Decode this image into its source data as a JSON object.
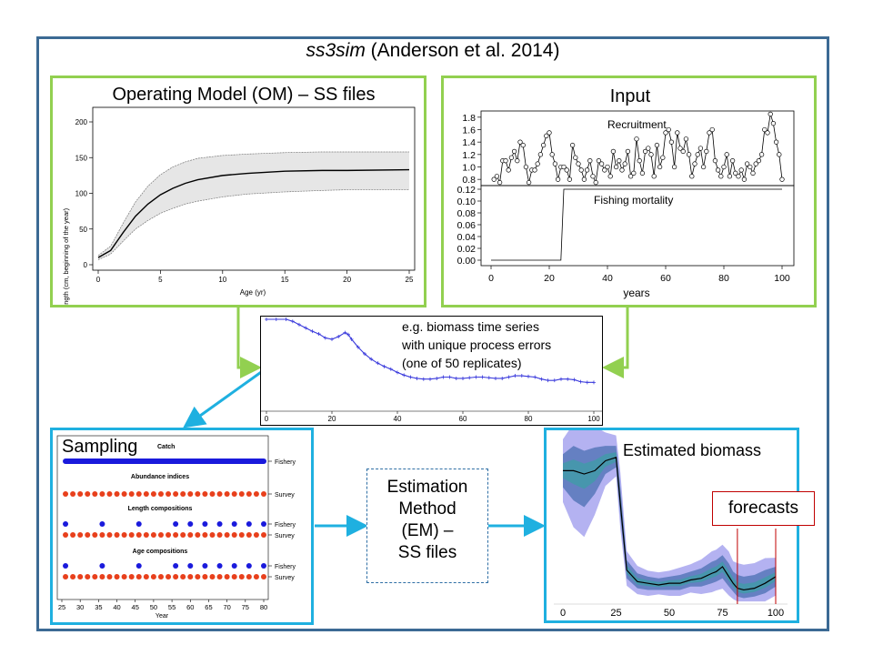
{
  "title": {
    "italic": "ss3sim",
    "rest": " (Anderson et al. 2014)"
  },
  "om": {
    "title": "Operating Model (OM) – SS files",
    "ylabel": "Length (cm, beginning of the year)",
    "xlabel": "Age (yr)",
    "xticks": [
      "0",
      "5",
      "10",
      "15",
      "20",
      "25"
    ],
    "yticks": [
      "0",
      "50",
      "100",
      "150",
      "200"
    ]
  },
  "input": {
    "title": "Input",
    "recruitment_label": "Recruitment",
    "fishing_label": "Fishing mortality",
    "xlabel": "years",
    "rec_ticks": [
      "1.8",
      "1.6",
      "1.4",
      "1.2",
      "1.0",
      "0.8"
    ],
    "f_ticks": [
      "0.12",
      "0.10",
      "0.08",
      "0.06",
      "0.04",
      "0.02",
      "0.00"
    ],
    "xticks": [
      "0",
      "20",
      "40",
      "60",
      "80",
      "100"
    ]
  },
  "biomass_series": {
    "caption_lines": [
      "e.g. biomass time series",
      "with unique process errors",
      "(one of 50 replicates)"
    ],
    "xticks": [
      "0",
      "20",
      "40",
      "60",
      "80",
      "100"
    ]
  },
  "sampling": {
    "title": "Sampling",
    "catch_label": "Catch",
    "abundance_label": "Abundance indices",
    "length_label": "Length compositions",
    "age_label": "Age compositions",
    "fishery": "Fishery",
    "survey": "Survey",
    "xlabel": "Year",
    "xticks": [
      "25",
      "30",
      "35",
      "40",
      "45",
      "50",
      "55",
      "60",
      "65",
      "70",
      "75",
      "80"
    ],
    "colors": {
      "fishery": "#1a1adc",
      "survey": "#e8401c"
    }
  },
  "em": {
    "lines": [
      "Estimation",
      "Method",
      "(EM) –",
      "SS files"
    ]
  },
  "estimated": {
    "title": "Estimated biomass",
    "forecasts": "forecasts",
    "xticks": [
      "0",
      "25",
      "50",
      "75",
      "100"
    ]
  },
  "colors": {
    "outer": "#3c6a94",
    "green": "#92d050",
    "blue": "#1fb0e0",
    "forecast": "#c00000"
  },
  "chart_data": [
    {
      "type": "line",
      "x": [
        0,
        1,
        2,
        3,
        4,
        5,
        6,
        7,
        8,
        10,
        12,
        15,
        18,
        20,
        25
      ],
      "series": [
        {
          "values": [
            10,
            20,
            45,
            68,
            85,
            98,
            107,
            114,
            119,
            125,
            128,
            131,
            132,
            132,
            133
          ]
        },
        {
          "values": [
            13,
            26,
            58,
            88,
            110,
            126,
            137,
            144,
            149,
            153,
            155,
            157,
            158,
            158,
            158
          ]
        },
        {
          "values": [
            7,
            15,
            33,
            50,
            62,
            72,
            79,
            85,
            89,
            95,
            99,
            102,
            104,
            105,
            105
          ]
        }
      ],
      "xlim": [
        0,
        25
      ],
      "ylim": [
        0,
        200
      ]
    },
    {
      "type": "line",
      "x": [
        1,
        2,
        3,
        4,
        5,
        6,
        7,
        8,
        9,
        10,
        11,
        12,
        13,
        14,
        15,
        16,
        17,
        18,
        19,
        20,
        21,
        22,
        23,
        24,
        25,
        26,
        27,
        28,
        29,
        30,
        31,
        32,
        33,
        34,
        35,
        36,
        37,
        38,
        39,
        40,
        41,
        42,
        43,
        44,
        45,
        46,
        47,
        48,
        49,
        50,
        51,
        52,
        53,
        54,
        55,
        56,
        57,
        58,
        59,
        60,
        61,
        62,
        63,
        64,
        65,
        66,
        67,
        68,
        69,
        70,
        71,
        72,
        73,
        74,
        75,
        76,
        77,
        78,
        79,
        80,
        81,
        82,
        83,
        84,
        85,
        86,
        87,
        88,
        89,
        90,
        91,
        92,
        93,
        94,
        95,
        96,
        97,
        98,
        99,
        100
      ],
      "series": [
        {
          "name": "Recruitment",
          "values": [
            0.8,
            0.85,
            0.75,
            1.1,
            1.1,
            0.95,
            1.15,
            1.25,
            1.1,
            1.4,
            1.35,
            1.0,
            0.75,
            0.95,
            0.95,
            1.05,
            1.2,
            1.35,
            1.5,
            1.55,
            1.2,
            1.05,
            0.8,
            1.0,
            1.0,
            0.95,
            0.8,
            1.35,
            1.15,
            1.05,
            0.95,
            0.8,
            0.95,
            1.1,
            0.85,
            0.75,
            1.1,
            1.05,
            0.95,
            1.0,
            0.85,
            1.25,
            1.0,
            1.1,
            0.95,
            1.05,
            1.25,
            0.85,
            0.9,
            1.45,
            1.1,
            0.9,
            1.25,
            1.3,
            1.2,
            0.85,
            1.35,
            1.0,
            1.15,
            1.55,
            1.6,
            1.4,
            1.0,
            1.55,
            1.3,
            1.25,
            1.45,
            1.2,
            0.85,
            1.05,
            1.2,
            1.3,
            1.0,
            1.25,
            1.55,
            1.6,
            1.1,
            0.95,
            0.85,
            1.0,
            1.2,
            0.85,
            1.1,
            0.9,
            0.85,
            0.95,
            0.8,
            1.05,
            1.0,
            0.9,
            1.05,
            1.1,
            1.2,
            1.6,
            1.55,
            1.85,
            1.7,
            1.4,
            1.2,
            0.8
          ]
        },
        {
          "name": "Fishing mortality",
          "values": [
            0,
            0,
            0,
            0,
            0,
            0,
            0,
            0,
            0,
            0,
            0,
            0,
            0,
            0,
            0,
            0,
            0,
            0,
            0,
            0,
            0,
            0,
            0,
            0,
            0.12,
            0.12,
            0.12,
            0.12,
            0.12,
            0.12,
            0.12,
            0.12,
            0.12,
            0.12,
            0.12,
            0.12,
            0.12,
            0.12,
            0.12,
            0.12,
            0.12,
            0.12,
            0.12,
            0.12,
            0.12,
            0.12,
            0.12,
            0.12,
            0.12,
            0.12,
            0.12,
            0.12,
            0.12,
            0.12,
            0.12,
            0.12,
            0.12,
            0.12,
            0.12,
            0.12,
            0.12,
            0.12,
            0.12,
            0.12,
            0.12,
            0.12,
            0.12,
            0.12,
            0.12,
            0.12,
            0.12,
            0.12,
            0.12,
            0.12,
            0.12,
            0.12,
            0.12,
            0.12,
            0.12,
            0.12,
            0.12,
            0.12,
            0.12,
            0.12,
            0.12,
            0.12,
            0.12,
            0.12,
            0.12,
            0.12,
            0.12,
            0.12,
            0.12,
            0.12,
            0.12,
            0.12,
            0.12,
            0.12,
            0.12,
            0.12
          ]
        }
      ],
      "xlim": [
        0,
        100
      ]
    },
    {
      "type": "line",
      "x": [
        0,
        3,
        6,
        8,
        10,
        12,
        14,
        16,
        18,
        20,
        22,
        24,
        25,
        26,
        28,
        30,
        32,
        34,
        36,
        38,
        40,
        42,
        44,
        46,
        48,
        50,
        52,
        54,
        56,
        58,
        60,
        62,
        64,
        66,
        68,
        70,
        72,
        74,
        76,
        78,
        80,
        82,
        84,
        86,
        88,
        90,
        92,
        94,
        96,
        98,
        100
      ],
      "series": [
        {
          "values": [
            1.0,
            1.0,
            1.0,
            0.97,
            0.92,
            0.87,
            0.82,
            0.78,
            0.72,
            0.7,
            0.74,
            0.8,
            0.77,
            0.7,
            0.58,
            0.48,
            0.4,
            0.34,
            0.29,
            0.25,
            0.2,
            0.16,
            0.13,
            0.11,
            0.1,
            0.1,
            0.11,
            0.13,
            0.13,
            0.11,
            0.11,
            0.12,
            0.13,
            0.13,
            0.12,
            0.11,
            0.11,
            0.13,
            0.15,
            0.15,
            0.14,
            0.13,
            0.1,
            0.08,
            0.08,
            0.1,
            0.1,
            0.09,
            0.06,
            0.05,
            0.05
          ]
        }
      ],
      "xlim": [
        0,
        100
      ]
    },
    {
      "type": "scatter",
      "categories": [
        "Catch",
        "Abundance indices",
        "Length compositions",
        "Age compositions"
      ],
      "x_range": [
        25,
        80
      ],
      "series": [
        {
          "name": "Fishery",
          "row": "Catch",
          "years": "continuous 26-100"
        },
        {
          "name": "Survey",
          "row": "Abundance indices",
          "years": [
            26,
            28,
            30,
            32,
            34,
            36,
            38,
            40,
            42,
            44,
            46,
            48,
            50,
            52,
            54,
            56,
            58,
            60,
            62,
            64,
            66,
            68,
            70,
            72,
            74,
            76,
            78,
            80
          ]
        },
        {
          "name": "Fishery",
          "row": "Length compositions",
          "years": [
            26,
            36,
            46,
            56,
            60,
            64,
            68,
            72,
            76,
            80
          ]
        },
        {
          "name": "Survey",
          "row": "Length compositions",
          "years": [
            26,
            28,
            30,
            32,
            34,
            36,
            38,
            40,
            42,
            44,
            46,
            48,
            50,
            52,
            54,
            56,
            58,
            60,
            62,
            64,
            66,
            68,
            70,
            72,
            74,
            76,
            78,
            80
          ]
        },
        {
          "name": "Fishery",
          "row": "Age compositions",
          "years": [
            26,
            36,
            46,
            56,
            60,
            64,
            68,
            72,
            76,
            80
          ]
        },
        {
          "name": "Survey",
          "row": "Age compositions",
          "years": [
            26,
            28,
            30,
            32,
            34,
            36,
            38,
            40,
            42,
            44,
            46,
            48,
            50,
            52,
            54,
            56,
            58,
            60,
            62,
            64,
            66,
            68,
            70,
            72,
            74,
            76,
            78,
            80
          ]
        }
      ]
    },
    {
      "type": "area",
      "x": [
        0,
        5,
        10,
        15,
        20,
        25,
        27,
        30,
        35,
        40,
        45,
        50,
        55,
        60,
        65,
        70,
        72,
        75,
        78,
        80,
        82,
        85,
        90,
        95,
        100
      ],
      "series": [
        {
          "name": "median",
          "values": [
            0.8,
            0.8,
            0.78,
            0.8,
            0.86,
            0.88,
            0.6,
            0.2,
            0.13,
            0.12,
            0.11,
            0.12,
            0.12,
            0.14,
            0.15,
            0.18,
            0.19,
            0.22,
            0.16,
            0.12,
            0.09,
            0.08,
            0.09,
            0.12,
            0.16
          ]
        },
        {
          "name": "upper",
          "values": [
            0.9,
            0.95,
            0.92,
            0.94,
            0.95,
            0.95,
            0.7,
            0.26,
            0.18,
            0.16,
            0.15,
            0.16,
            0.17,
            0.19,
            0.21,
            0.25,
            0.26,
            0.29,
            0.24,
            0.19,
            0.17,
            0.16,
            0.17,
            0.2,
            0.22
          ]
        },
        {
          "name": "lower",
          "values": [
            0.7,
            0.62,
            0.58,
            0.66,
            0.78,
            0.82,
            0.52,
            0.15,
            0.09,
            0.08,
            0.08,
            0.08,
            0.08,
            0.1,
            0.1,
            0.12,
            0.13,
            0.15,
            0.1,
            0.07,
            0.04,
            0.03,
            0.04,
            0.06,
            0.1
          ]
        }
      ],
      "xlim": [
        0,
        100
      ]
    }
  ]
}
